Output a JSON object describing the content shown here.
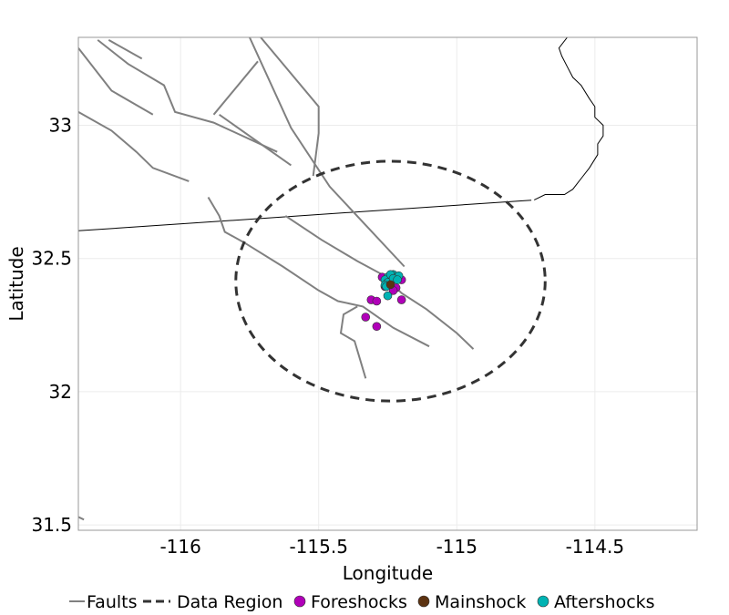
{
  "chart_data": {
    "type": "scatter",
    "title": "",
    "xlabel": "Longitude",
    "ylabel": "Latitude",
    "xlim": [
      -116.37,
      -114.13
    ],
    "ylim": [
      31.48,
      33.33
    ],
    "x_ticks": [
      {
        "value": -116,
        "label": "-116"
      },
      {
        "value": -115.5,
        "label": "-115.5"
      },
      {
        "value": -115,
        "label": "-115"
      },
      {
        "value": -114.5,
        "label": "-114.5"
      }
    ],
    "y_ticks": [
      {
        "value": 31.5,
        "label": "31.5"
      },
      {
        "value": 32,
        "label": "32"
      },
      {
        "value": 32.5,
        "label": "32.5"
      },
      {
        "value": 33,
        "label": "33"
      }
    ],
    "grid": true,
    "legend_position": "bottom",
    "legend": [
      {
        "key": "faults",
        "label": "Faults",
        "kind": "line",
        "color": "#808080"
      },
      {
        "key": "region",
        "label": "Data Region",
        "kind": "dashed",
        "color": "#333333"
      },
      {
        "key": "fore",
        "label": "Foreshocks",
        "kind": "point",
        "color": "#b000b8"
      },
      {
        "key": "main",
        "label": "Mainshock",
        "kind": "point",
        "color": "#5c3311"
      },
      {
        "key": "after",
        "label": "Aftershocks",
        "kind": "point",
        "color": "#00b3b3"
      }
    ],
    "data_region": {
      "center": [
        -115.24,
        32.415
      ],
      "radius_lon": 0.56,
      "radius_lat": 0.45
    },
    "boundary": [
      [
        -116.37,
        32.604
      ],
      [
        -114.73,
        32.719
      ]
    ],
    "coastline": [
      [
        -114.6,
        33.33
      ],
      [
        -114.63,
        33.29
      ],
      [
        -114.62,
        33.26
      ],
      [
        -114.6,
        33.22
      ],
      [
        -114.58,
        33.18
      ],
      [
        -114.55,
        33.15
      ],
      [
        -114.52,
        33.1
      ],
      [
        -114.5,
        33.07
      ],
      [
        -114.5,
        33.03
      ],
      [
        -114.47,
        33.0
      ],
      [
        -114.47,
        32.96
      ],
      [
        -114.49,
        32.93
      ],
      [
        -114.49,
        32.89
      ],
      [
        -114.52,
        32.84
      ],
      [
        -114.55,
        32.8
      ],
      [
        -114.58,
        32.76
      ],
      [
        -114.61,
        32.74
      ],
      [
        -114.68,
        32.74
      ],
      [
        -114.72,
        32.72
      ]
    ],
    "faults": [
      [
        [
          -116.37,
          33.29
        ],
        [
          -116.25,
          33.13
        ],
        [
          -116.1,
          33.04
        ]
      ],
      [
        [
          -116.26,
          33.32
        ],
        [
          -116.14,
          33.25
        ]
      ],
      [
        [
          -116.3,
          33.32
        ],
        [
          -116.19,
          33.23
        ],
        [
          -116.06,
          33.15
        ],
        [
          -116.02,
          33.05
        ],
        [
          -115.88,
          33.01
        ],
        [
          -115.65,
          32.9
        ]
      ],
      [
        [
          -115.88,
          33.04
        ],
        [
          -115.72,
          33.24
        ]
      ],
      [
        [
          -115.75,
          33.33
        ],
        [
          -115.6,
          32.99
        ],
        [
          -115.46,
          32.77
        ],
        [
          -115.19,
          32.47
        ]
      ],
      [
        [
          -115.71,
          33.33
        ],
        [
          -115.5,
          33.07
        ],
        [
          -115.5,
          32.97
        ],
        [
          -115.52,
          32.81
        ]
      ],
      [
        [
          -115.86,
          33.04
        ],
        [
          -115.6,
          32.85
        ]
      ],
      [
        [
          -116.37,
          33.05
        ],
        [
          -116.25,
          32.98
        ],
        [
          -116.16,
          32.9
        ],
        [
          -116.1,
          32.84
        ],
        [
          -115.97,
          32.79
        ]
      ],
      [
        [
          -116.37,
          32.98
        ]
      ],
      [
        [
          -115.9,
          32.73
        ],
        [
          -115.86,
          32.66
        ],
        [
          -115.84,
          32.6
        ],
        [
          -115.77,
          32.56
        ],
        [
          -115.63,
          32.47
        ],
        [
          -115.5,
          32.38
        ],
        [
          -115.43,
          32.34
        ],
        [
          -115.34,
          32.32
        ],
        [
          -115.23,
          32.24
        ],
        [
          -115.1,
          32.17
        ]
      ],
      [
        [
          -115.62,
          32.66
        ],
        [
          -115.49,
          32.57
        ],
        [
          -115.36,
          32.49
        ],
        [
          -115.27,
          32.44
        ],
        [
          -115.2,
          32.37
        ],
        [
          -115.11,
          32.31
        ],
        [
          -115.0,
          32.22
        ],
        [
          -114.94,
          32.16
        ]
      ],
      [
        [
          -115.36,
          32.32
        ],
        [
          -115.41,
          32.29
        ],
        [
          -115.42,
          32.22
        ],
        [
          -115.37,
          32.19
        ],
        [
          -115.35,
          32.12
        ],
        [
          -115.33,
          32.05
        ]
      ],
      [
        [
          -116.37,
          31.53
        ],
        [
          -116.35,
          31.52
        ]
      ]
    ],
    "foreshocks": [
      [
        -115.24,
        32.41
      ],
      [
        -115.22,
        32.39
      ],
      [
        -115.2,
        32.42
      ],
      [
        -115.23,
        32.38
      ],
      [
        -115.31,
        32.345
      ],
      [
        -115.29,
        32.34
      ],
      [
        -115.2,
        32.345
      ],
      [
        -115.33,
        32.28
      ],
      [
        -115.29,
        32.245
      ],
      [
        -115.27,
        32.43
      ],
      [
        -115.26,
        32.395
      ]
    ],
    "mainshock": [
      [
        -115.24,
        32.402
      ]
    ],
    "aftershocks": [
      [
        -115.25,
        32.43
      ],
      [
        -115.23,
        32.44
      ],
      [
        -115.22,
        32.43
      ],
      [
        -115.26,
        32.42
      ],
      [
        -115.24,
        32.44
      ],
      [
        -115.21,
        32.435
      ],
      [
        -115.25,
        32.41
      ],
      [
        -115.26,
        32.4
      ],
      [
        -115.23,
        32.425
      ],
      [
        -115.25,
        32.36
      ],
      [
        -115.255,
        32.395
      ],
      [
        -115.215,
        32.42
      ]
    ]
  }
}
